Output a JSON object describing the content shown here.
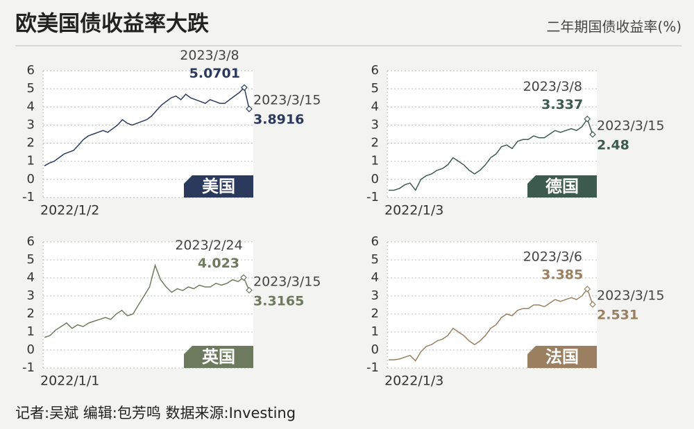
{
  "header": {
    "title": "欧美国债收益率大跌",
    "unit": "二年期国债收益率(%)"
  },
  "chart_data": [
    {
      "type": "line",
      "label": "美国",
      "start_date": "2022/1/2",
      "color": "#2b3a5c",
      "ylim": [
        -1,
        6
      ],
      "yticks": [
        -1,
        0,
        1,
        2,
        3,
        4,
        5,
        6
      ],
      "grid": true,
      "values": [
        0.75,
        0.9,
        1.0,
        1.2,
        1.4,
        1.5,
        1.6,
        1.9,
        2.2,
        2.4,
        2.5,
        2.6,
        2.7,
        2.6,
        2.8,
        3.0,
        3.3,
        3.1,
        3.0,
        3.1,
        3.2,
        3.3,
        3.5,
        3.8,
        4.1,
        4.3,
        4.5,
        4.6,
        4.4,
        4.7,
        4.5,
        4.4,
        4.3,
        4.2,
        4.4,
        4.3,
        4.2,
        4.2,
        4.4,
        4.6,
        4.8,
        5.0701,
        3.8916
      ],
      "annotations": [
        {
          "date": "2023/3/8",
          "value": 5.0701
        },
        {
          "date": "2023/3/15",
          "value": 3.8916
        }
      ]
    },
    {
      "type": "line",
      "label": "德国",
      "start_date": "2022/1/3",
      "color": "#3d5a4f",
      "ylim": [
        -1,
        6
      ],
      "yticks": [
        -1,
        0,
        1,
        2,
        3,
        4,
        5,
        6
      ],
      "grid": true,
      "values": [
        -0.6,
        -0.6,
        -0.5,
        -0.3,
        -0.2,
        -0.6,
        0.0,
        0.2,
        0.3,
        0.5,
        0.6,
        0.8,
        1.2,
        1.0,
        0.8,
        0.5,
        0.3,
        0.5,
        0.8,
        1.2,
        1.4,
        1.8,
        1.9,
        1.7,
        2.1,
        2.2,
        2.2,
        2.4,
        2.3,
        2.3,
        2.5,
        2.7,
        2.6,
        2.7,
        2.8,
        2.7,
        2.9,
        3.337,
        2.48
      ],
      "annotations": [
        {
          "date": "2023/3/8",
          "value": 3.337
        },
        {
          "date": "2023/3/15",
          "value": 2.48
        }
      ]
    },
    {
      "type": "line",
      "label": "英国",
      "start_date": "2022/1/1",
      "color": "#6d7a5e",
      "ylim": [
        -1,
        6
      ],
      "yticks": [
        -1,
        0,
        1,
        2,
        3,
        4,
        5,
        6
      ],
      "grid": true,
      "values": [
        0.7,
        0.8,
        1.1,
        1.3,
        1.5,
        1.2,
        1.4,
        1.3,
        1.5,
        1.6,
        1.7,
        1.8,
        1.7,
        2.0,
        2.2,
        1.9,
        2.0,
        2.5,
        3.0,
        3.5,
        4.7,
        3.9,
        3.5,
        3.2,
        3.4,
        3.3,
        3.5,
        3.4,
        3.6,
        3.5,
        3.5,
        3.7,
        3.6,
        3.7,
        3.9,
        3.8,
        4.023,
        3.3165
      ],
      "annotations": [
        {
          "date": "2023/2/24",
          "value": 4.023
        },
        {
          "date": "2023/3/15",
          "value": 3.3165
        }
      ]
    },
    {
      "type": "line",
      "label": "法国",
      "start_date": "2022/1/3",
      "color": "#9a8060",
      "ylim": [
        -1,
        6
      ],
      "yticks": [
        -1,
        0,
        1,
        2,
        3,
        4,
        5,
        6
      ],
      "grid": true,
      "values": [
        -0.55,
        -0.55,
        -0.5,
        -0.4,
        -0.3,
        -0.6,
        -0.1,
        0.2,
        0.3,
        0.5,
        0.6,
        0.8,
        1.2,
        1.0,
        0.8,
        0.5,
        0.3,
        0.5,
        0.8,
        1.2,
        1.4,
        1.8,
        2.0,
        1.9,
        2.2,
        2.3,
        2.3,
        2.5,
        2.5,
        2.4,
        2.6,
        2.8,
        2.7,
        2.8,
        2.9,
        2.8,
        3.0,
        3.385,
        2.531
      ],
      "annotations": [
        {
          "date": "2023/3/6",
          "value": 3.385
        },
        {
          "date": "2023/3/15",
          "value": 2.531
        }
      ]
    }
  ],
  "footer": "记者:吴斌  编辑:包芳鸣  数据来源:Investing"
}
